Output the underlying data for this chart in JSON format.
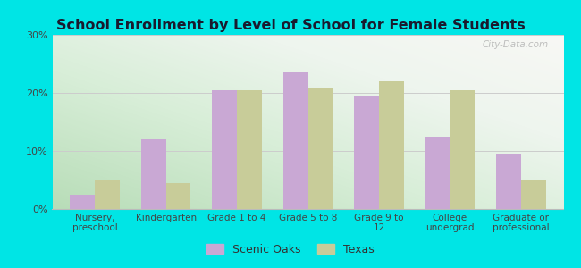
{
  "title": "School Enrollment by Level of School for Female Students",
  "categories": [
    "Nursery,\npreschool",
    "Kindergarten",
    "Grade 1 to 4",
    "Grade 5 to 8",
    "Grade 9 to\n12",
    "College\nundergrad",
    "Graduate or\nprofessional"
  ],
  "scenic_oaks": [
    2.5,
    12.0,
    20.5,
    23.5,
    19.5,
    12.5,
    9.5
  ],
  "texas": [
    5.0,
    4.5,
    20.5,
    21.0,
    22.0,
    20.5,
    5.0
  ],
  "bar_color_scenic": "#c9a8d4",
  "bar_color_texas": "#c8cc99",
  "background_color": "#00e5e5",
  "gradient_colors": [
    "#d6ecd6",
    "#f0f5e8",
    "#f5f5f0",
    "#ffffff"
  ],
  "ylim": [
    0,
    30
  ],
  "yticks": [
    0,
    10,
    20,
    30
  ],
  "yticklabels": [
    "0%",
    "10%",
    "20%",
    "30%"
  ],
  "legend_labels": [
    "Scenic Oaks",
    "Texas"
  ],
  "watermark": "City-Data.com",
  "bar_width": 0.35
}
